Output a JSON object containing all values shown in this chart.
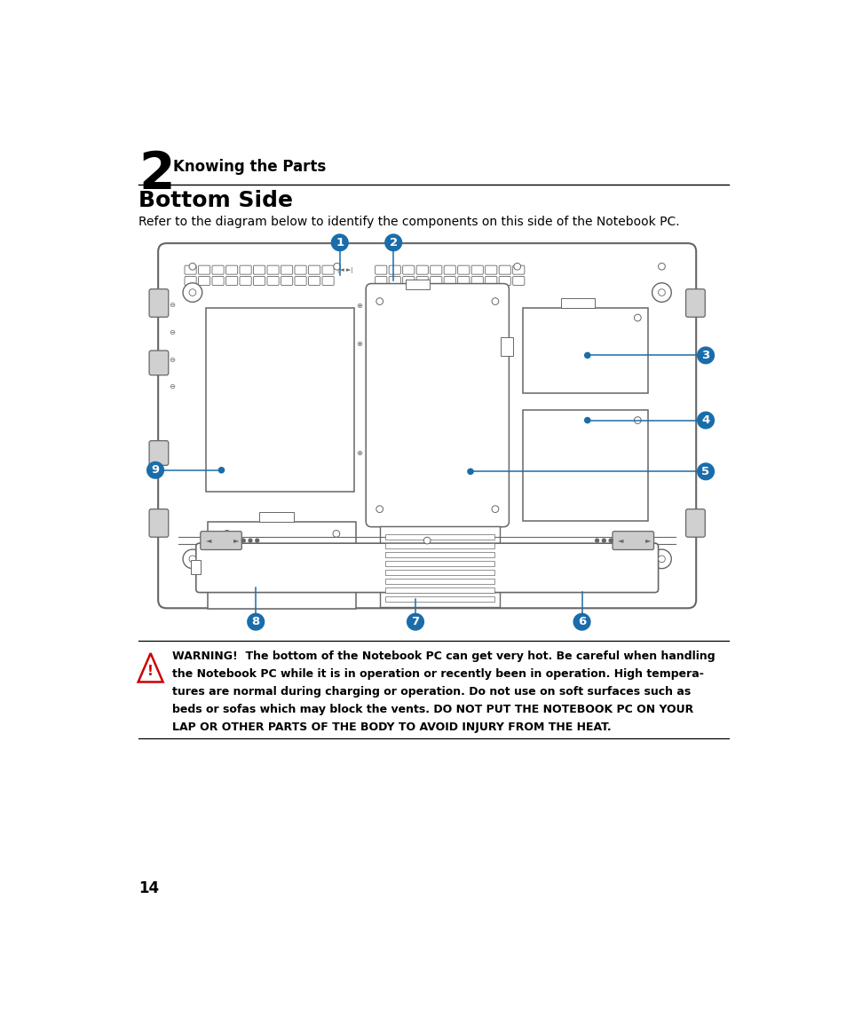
{
  "page_bg": "#ffffff",
  "chapter_num": "2",
  "chapter_title": "Knowing the Parts",
  "section_title": "Bottom Side",
  "section_desc": "Refer to the diagram below to identify the components on this side of the Notebook PC.",
  "page_number": "14",
  "blue_color": "#1a6daa",
  "diagram_line_color": "#666666",
  "warn_line1": "WARNING!  The bottom of the Notebook PC can get very hot. Be careful when handling",
  "warn_line2": "the Notebook PC while it is in operation or recently been in operation. High tempera-",
  "warn_line3": "tures are normal during charging or operation. Do not use on soft surfaces such as",
  "warn_line4": "beds or sofas which may block the vents. DO NOT PUT THE NOTEBOOK PC ON YOUR",
  "warn_line5": "LAP OR OTHER PARTS OF THE BODY TO AVOID INJURY FROM THE HEAT."
}
